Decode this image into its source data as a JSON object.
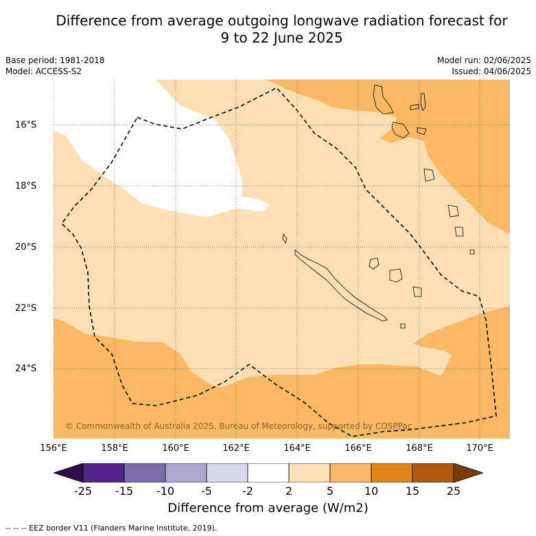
{
  "title": {
    "line1": "Difference from average outgoing longwave radiation forecast for",
    "line2": "9 to 22 June 2025"
  },
  "meta": {
    "base_period": "Base period: 1981-2018",
    "model": "Model: ACCESS-S2",
    "model_run": "Model run: 02/06/2025",
    "issued": "Issued: 04/06/2025"
  },
  "map": {
    "extent": {
      "lon_min": 156,
      "lon_max": 171,
      "lat_min": -26.8,
      "lat_max": -14.5
    },
    "lat_ticks": [
      "16°S",
      "18°S",
      "20°S",
      "22°S",
      "24°S"
    ],
    "lon_ticks": [
      "156°E",
      "158°E",
      "160°E",
      "162°E",
      "164°E",
      "166°E",
      "168°E",
      "170°E"
    ],
    "copyright": "© Commonwealth of Australia 2025, Bureau of Meteorology, supported by COSPPac"
  },
  "colorbar": {
    "ticks": [
      "-25",
      "-15",
      "-10",
      "-5",
      "-2",
      "2",
      "5",
      "10",
      "15",
      "25"
    ],
    "colors": [
      "#2e0d4a",
      "#54238c",
      "#7b6eac",
      "#ada7d0",
      "#d8d8ec",
      "#ffffff",
      "#fddfb3",
      "#fbb865",
      "#e08518",
      "#b05a0a",
      "#7a3b06"
    ],
    "label": "Difference from average (W/m2)"
  },
  "footnote": "--  --  -- EEZ border V11 (Flanders Marine Institute, 2019)."
}
